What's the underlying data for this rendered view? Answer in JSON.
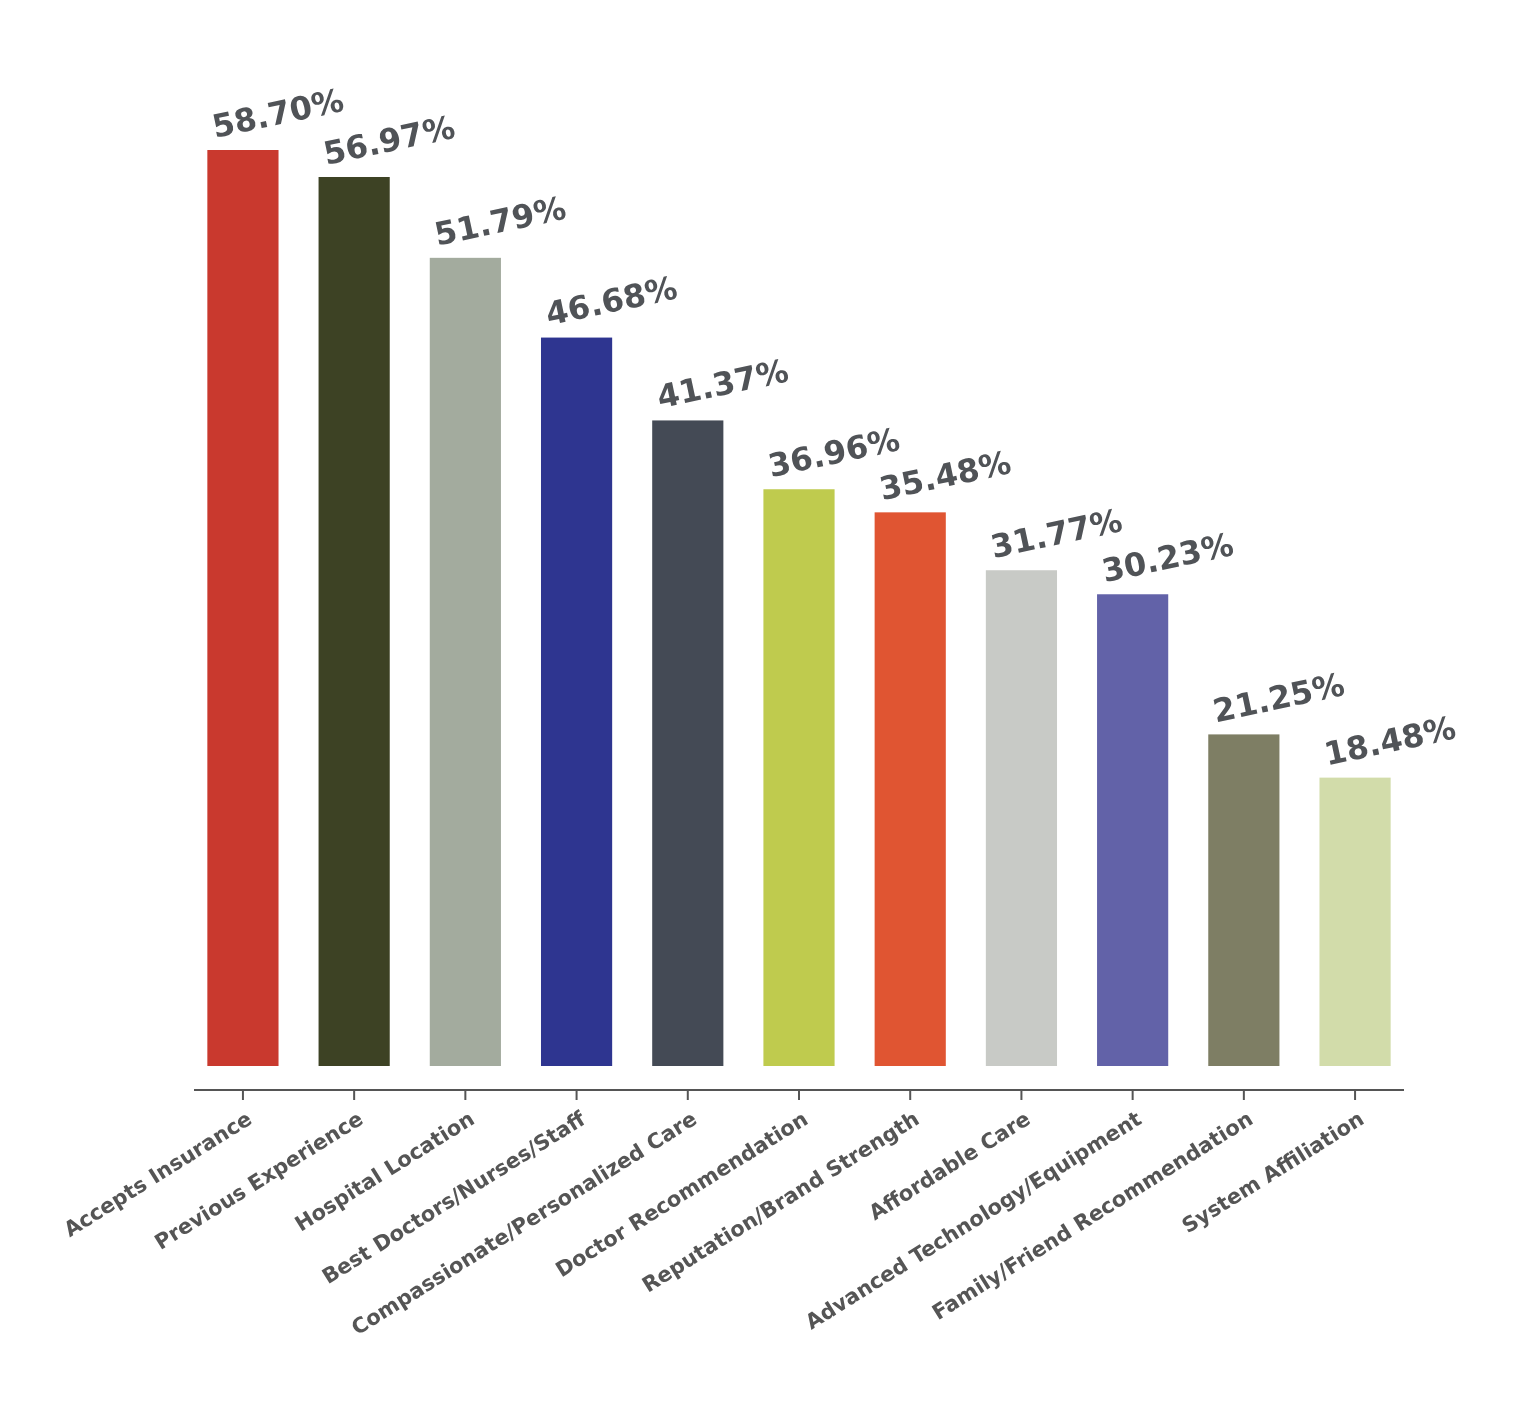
{
  "chart_data": {
    "type": "bar",
    "categories": [
      "Accepts Insurance",
      "Previous Experience",
      "Hospital Location",
      "Best Doctors/Nurses/Staff",
      "Compassionate/Personalized Care",
      "Doctor Recommendation",
      "Reputation/Brand Strength",
      "Affordable Care",
      "Advanced Technology/Equipment",
      "Family/Friend Recommendation",
      "System Affiliation"
    ],
    "values": [
      58.7,
      56.97,
      51.79,
      46.68,
      41.37,
      36.96,
      35.48,
      31.77,
      30.23,
      21.25,
      18.48
    ],
    "colors": [
      "#c9392e",
      "#3d4224",
      "#a3ab9e",
      "#2e3590",
      "#444a55",
      "#bfcb4e",
      "#e05532",
      "#c8cac6",
      "#6262a8",
      "#7e7e64",
      "#d2dcaa"
    ],
    "value_labels": [
      "58.70%",
      "56.97%",
      "51.79%",
      "46.68%",
      "41.37%",
      "36.96%",
      "35.48%",
      "31.77%",
      "30.23%",
      "21.25%",
      "18.48%"
    ]
  }
}
